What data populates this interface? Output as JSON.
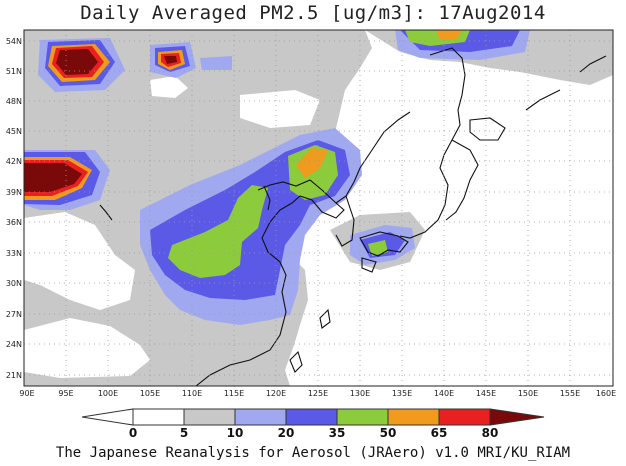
{
  "title": "Daily Averaged PM2.5 [ug/m3]: 17Aug2014",
  "credit": "The Japanese Reanalysis for Aerosol (JRAero) v1.0 MRI/KU_RIAM",
  "map": {
    "region": "East Asia",
    "lon_range": [
      90,
      160
    ],
    "lat_range": [
      20,
      55
    ],
    "lon_ticks": [
      "90E",
      "95E",
      "100E",
      "105E",
      "110E",
      "115E",
      "120E",
      "125E",
      "130E",
      "135E",
      "140E",
      "145E",
      "150E",
      "155E",
      "160E"
    ],
    "lat_ticks": [
      "54N",
      "51N",
      "48N",
      "45N",
      "42N",
      "39N",
      "36N",
      "33N",
      "30N",
      "27N",
      "24N",
      "21N"
    ],
    "grid": "dotted"
  },
  "colorbar": {
    "labels": [
      "0",
      "5",
      "10",
      "20",
      "35",
      "50",
      "65",
      "80"
    ],
    "colors": [
      "#ffffff",
      "#c8c8c8",
      "#a0a8f0",
      "#5a5ae6",
      "#8ccc3c",
      "#f09a1e",
      "#e82020",
      "#7a0a0a"
    ]
  }
}
